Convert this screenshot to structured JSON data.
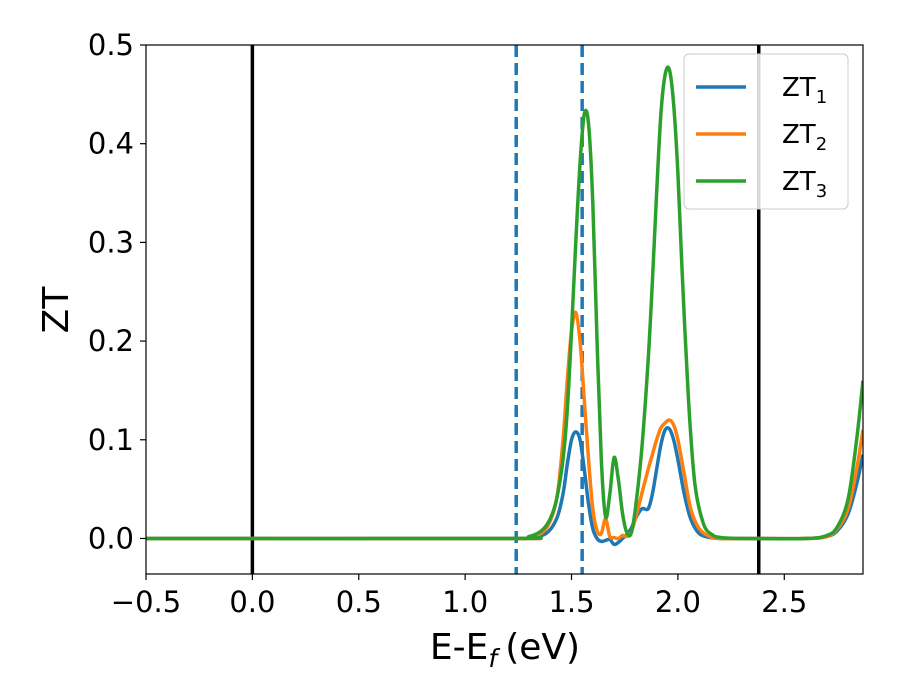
{
  "chart_data": {
    "type": "line",
    "title": "",
    "xlabel": "E-E",
    "xlabel_sub": "f",
    "xlabel_unit": "(eV)",
    "ylabel": "ZT",
    "xlim": [
      -0.5,
      2.87
    ],
    "ylim": [
      -0.036,
      0.5
    ],
    "xticks": [
      -0.5,
      0.0,
      0.5,
      1.0,
      1.5,
      2.0,
      2.5
    ],
    "xtick_labels": [
      "−0.5",
      "0.0",
      "0.5",
      "1.0",
      "1.5",
      "2.0",
      "2.5"
    ],
    "yticks": [
      0.0,
      0.1,
      0.2,
      0.3,
      0.4,
      0.5
    ],
    "ytick_labels": [
      "0.0",
      "0.1",
      "0.2",
      "0.3",
      "0.4",
      "0.5"
    ],
    "grid": false,
    "legend_position": "top-right",
    "vlines_solid": [
      0.0,
      2.38
    ],
    "vlines_dashed": [
      1.24,
      1.55
    ],
    "vline_solid_color": "#000000",
    "vline_dashed_color": "#1f77b4",
    "series": [
      {
        "name": "ZT",
        "name_sub": "1",
        "color": "#1f77b4",
        "x": [
          -0.5,
          1.2,
          1.3,
          1.38,
          1.43,
          1.46,
          1.48,
          1.5,
          1.52,
          1.54,
          1.56,
          1.58,
          1.6,
          1.62,
          1.64,
          1.66,
          1.68,
          1.7,
          1.72,
          1.74,
          1.76,
          1.78,
          1.8,
          1.83,
          1.86,
          1.88,
          1.9,
          1.92,
          1.94,
          1.96,
          1.98,
          2.0,
          2.03,
          2.06,
          2.1,
          2.15,
          2.2,
          2.3,
          2.6,
          2.7,
          2.75,
          2.8,
          2.84,
          2.87
        ],
        "y": [
          0.0,
          0.0,
          0.001,
          0.005,
          0.02,
          0.045,
          0.075,
          0.1,
          0.108,
          0.1,
          0.07,
          0.035,
          0.01,
          0.0,
          -0.003,
          -0.002,
          -0.001,
          -0.006,
          -0.004,
          0.0,
          0.004,
          0.01,
          0.02,
          0.03,
          0.03,
          0.045,
          0.07,
          0.095,
          0.11,
          0.111,
          0.1,
          0.08,
          0.045,
          0.02,
          0.005,
          0.001,
          0.0,
          0.0,
          0.0,
          0.002,
          0.008,
          0.025,
          0.055,
          0.085
        ]
      },
      {
        "name": "ZT",
        "name_sub": "2",
        "color": "#ff7f0e",
        "x": [
          -0.5,
          1.2,
          1.3,
          1.38,
          1.43,
          1.46,
          1.48,
          1.5,
          1.52,
          1.54,
          1.56,
          1.58,
          1.6,
          1.62,
          1.64,
          1.66,
          1.68,
          1.7,
          1.72,
          1.74,
          1.76,
          1.78,
          1.8,
          1.83,
          1.86,
          1.88,
          1.9,
          1.92,
          1.94,
          1.96,
          1.98,
          2.0,
          2.03,
          2.06,
          2.1,
          2.15,
          2.2,
          2.3,
          2.6,
          2.7,
          2.75,
          2.8,
          2.84,
          2.87
        ],
        "y": [
          0.0,
          0.0,
          0.001,
          0.01,
          0.04,
          0.1,
          0.16,
          0.21,
          0.229,
          0.2,
          0.14,
          0.08,
          0.03,
          0.008,
          0.005,
          0.02,
          0.002,
          0.001,
          0.0,
          0.003,
          0.002,
          0.006,
          0.02,
          0.045,
          0.07,
          0.085,
          0.1,
          0.112,
          0.117,
          0.12,
          0.115,
          0.1,
          0.065,
          0.03,
          0.01,
          0.002,
          0.0,
          0.0,
          0.0,
          0.002,
          0.01,
          0.03,
          0.07,
          0.11
        ]
      },
      {
        "name": "ZT",
        "name_sub": "3",
        "color": "#2ca02c",
        "x": [
          -0.5,
          1.2,
          1.3,
          1.36,
          1.4,
          1.43,
          1.46,
          1.48,
          1.5,
          1.52,
          1.54,
          1.56,
          1.58,
          1.6,
          1.62,
          1.64,
          1.66,
          1.68,
          1.7,
          1.72,
          1.74,
          1.76,
          1.78,
          1.8,
          1.83,
          1.86,
          1.88,
          1.9,
          1.92,
          1.94,
          1.96,
          1.98,
          2.0,
          2.02,
          2.05,
          2.08,
          2.12,
          2.16,
          2.2,
          2.3,
          2.6,
          2.7,
          2.75,
          2.8,
          2.84,
          2.87
        ],
        "y": [
          0.0,
          0.0,
          0.002,
          0.008,
          0.02,
          0.04,
          0.08,
          0.13,
          0.21,
          0.3,
          0.38,
          0.43,
          0.42,
          0.34,
          0.2,
          0.08,
          0.022,
          0.045,
          0.082,
          0.06,
          0.025,
          0.006,
          0.005,
          0.03,
          0.09,
          0.18,
          0.26,
          0.35,
          0.43,
          0.47,
          0.475,
          0.44,
          0.37,
          0.27,
          0.14,
          0.055,
          0.015,
          0.004,
          0.001,
          0.0,
          0.0,
          0.003,
          0.012,
          0.04,
          0.1,
          0.16
        ]
      }
    ]
  }
}
